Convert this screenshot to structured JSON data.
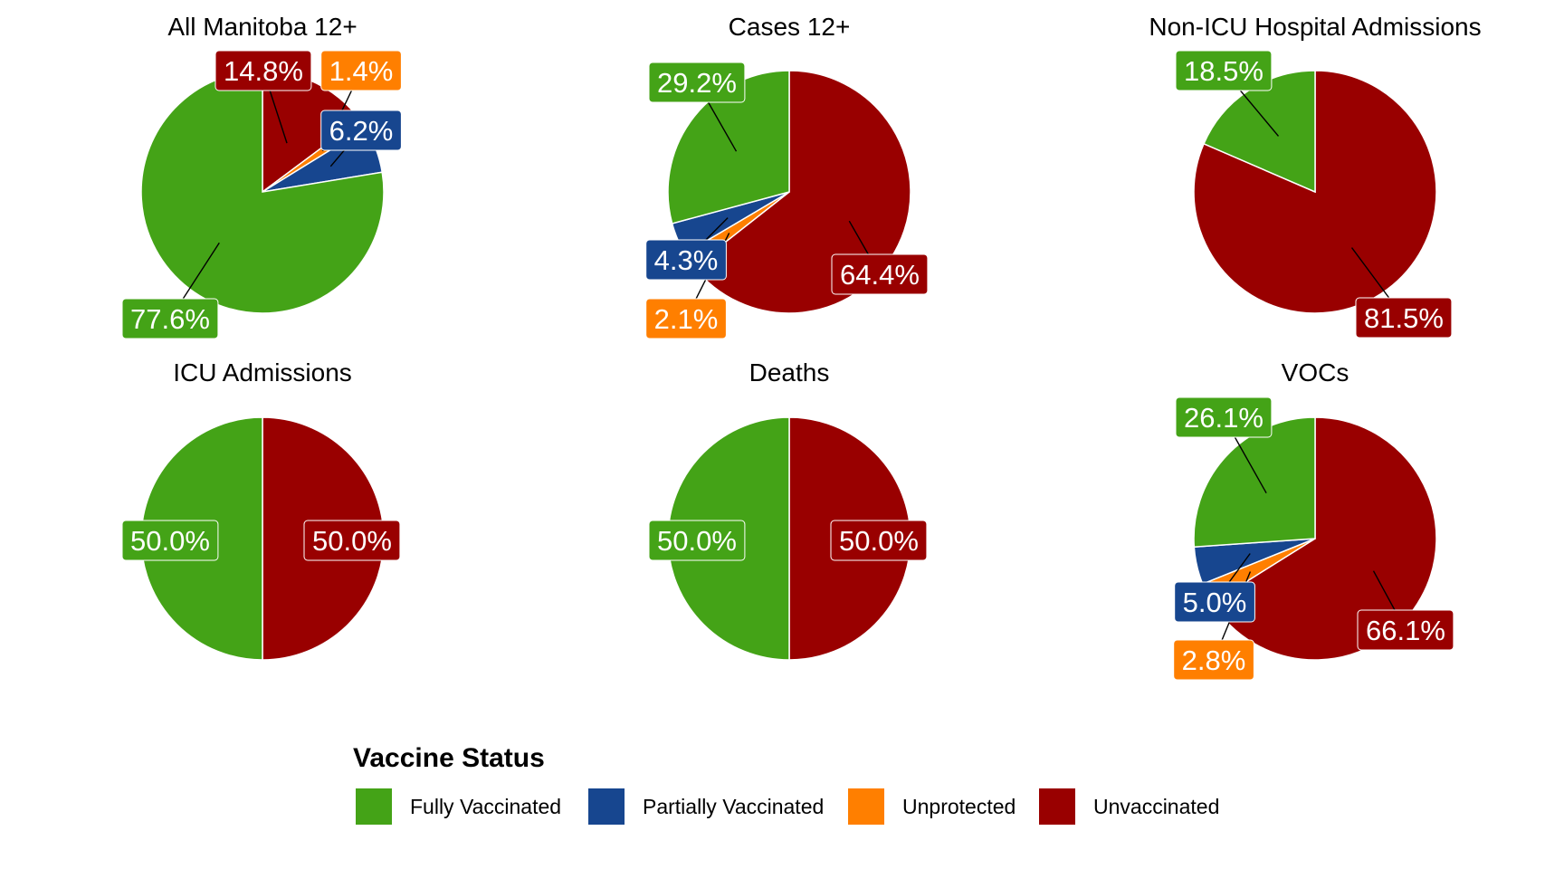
{
  "chart_data": {
    "type": "pie",
    "colors": {
      "Fully Vaccinated": "#44A317",
      "Partially Vaccinated": "#17468F",
      "Unprotected": "#FF7F00",
      "Unvaccinated": "#990000"
    },
    "legend": {
      "title": "Vaccine Status",
      "position": "bottom",
      "entries": [
        "Fully Vaccinated",
        "Partially Vaccinated",
        "Unprotected",
        "Unvaccinated"
      ]
    },
    "panels": [
      {
        "title": "All Manitoba 12+",
        "slices": [
          {
            "category": "Unvaccinated",
            "value": 14.8,
            "label": "14.8%"
          },
          {
            "category": "Unprotected",
            "value": 1.4,
            "label": "1.4%"
          },
          {
            "category": "Partially Vaccinated",
            "value": 6.2,
            "label": "6.2%"
          },
          {
            "category": "Fully Vaccinated",
            "value": 77.6,
            "label": "77.6%"
          }
        ]
      },
      {
        "title": "Cases 12+",
        "slices": [
          {
            "category": "Unvaccinated",
            "value": 64.4,
            "label": "64.4%"
          },
          {
            "category": "Unprotected",
            "value": 2.1,
            "label": "2.1%"
          },
          {
            "category": "Partially Vaccinated",
            "value": 4.3,
            "label": "4.3%"
          },
          {
            "category": "Fully Vaccinated",
            "value": 29.2,
            "label": "29.2%"
          }
        ]
      },
      {
        "title": "Non-ICU Hospital Admissions",
        "slices": [
          {
            "category": "Unvaccinated",
            "value": 81.5,
            "label": "81.5%"
          },
          {
            "category": "Fully Vaccinated",
            "value": 18.5,
            "label": "18.5%"
          }
        ]
      },
      {
        "title": "ICU Admissions",
        "slices": [
          {
            "category": "Unvaccinated",
            "value": 50.0,
            "label": "50.0%"
          },
          {
            "category": "Fully Vaccinated",
            "value": 50.0,
            "label": "50.0%"
          }
        ]
      },
      {
        "title": "Deaths",
        "slices": [
          {
            "category": "Unvaccinated",
            "value": 50.0,
            "label": "50.0%"
          },
          {
            "category": "Fully Vaccinated",
            "value": 50.0,
            "label": "50.0%"
          }
        ]
      },
      {
        "title": "VOCs",
        "slices": [
          {
            "category": "Unvaccinated",
            "value": 66.1,
            "label": "66.1%"
          },
          {
            "category": "Unprotected",
            "value": 2.8,
            "label": "2.8%"
          },
          {
            "category": "Partially Vaccinated",
            "value": 5.0,
            "label": "5.0%"
          },
          {
            "category": "Fully Vaccinated",
            "value": 26.1,
            "label": "26.1%"
          }
        ]
      }
    ]
  }
}
